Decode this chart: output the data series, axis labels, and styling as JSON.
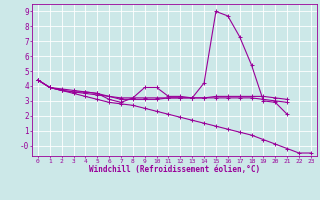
{
  "background_color": "#cce8e8",
  "grid_color": "#ffffff",
  "line_color": "#990099",
  "marker": "+",
  "xlabel": "Windchill (Refroidissement éolien,°C)",
  "xlim": [
    -0.5,
    23.5
  ],
  "ylim": [
    -0.7,
    9.5
  ],
  "xticks": [
    0,
    1,
    2,
    3,
    4,
    5,
    6,
    7,
    8,
    9,
    10,
    11,
    12,
    13,
    14,
    15,
    16,
    17,
    18,
    19,
    20,
    21,
    22,
    23
  ],
  "yticks": [
    0,
    1,
    2,
    3,
    4,
    5,
    6,
    7,
    8,
    9
  ],
  "ytick_labels": [
    "-0",
    "1",
    "2",
    "3",
    "4",
    "5",
    "6",
    "7",
    "8",
    "9"
  ],
  "series": [
    {
      "x": [
        0,
        1,
        2,
        3,
        4,
        5,
        6,
        7,
        8,
        9,
        10,
        11,
        12,
        13,
        14,
        15,
        16,
        17,
        18,
        19,
        20,
        21
      ],
      "y": [
        4.4,
        3.9,
        3.7,
        3.6,
        3.6,
        3.5,
        3.1,
        2.9,
        3.2,
        3.9,
        3.9,
        3.3,
        3.3,
        3.2,
        4.2,
        9.0,
        8.7,
        7.3,
        5.4,
        3.0,
        2.9,
        2.1
      ]
    },
    {
      "x": [
        0,
        1,
        2,
        3,
        4,
        5,
        6,
        7,
        8,
        9,
        10,
        11,
        12,
        13,
        14,
        15,
        16,
        17,
        18,
        19,
        20,
        21
      ],
      "y": [
        4.4,
        3.9,
        3.7,
        3.6,
        3.5,
        3.4,
        3.3,
        3.2,
        3.2,
        3.2,
        3.2,
        3.2,
        3.2,
        3.2,
        3.2,
        3.2,
        3.2,
        3.2,
        3.2,
        3.1,
        3.0,
        2.9
      ]
    },
    {
      "x": [
        0,
        1,
        2,
        3,
        4,
        5,
        6,
        7,
        8,
        9,
        10,
        11,
        12,
        13,
        14,
        15,
        16,
        17,
        18,
        19,
        20,
        21
      ],
      "y": [
        4.4,
        3.9,
        3.8,
        3.7,
        3.6,
        3.5,
        3.3,
        3.1,
        3.1,
        3.1,
        3.1,
        3.2,
        3.2,
        3.2,
        3.2,
        3.3,
        3.3,
        3.3,
        3.3,
        3.3,
        3.2,
        3.1
      ]
    },
    {
      "x": [
        0,
        1,
        2,
        3,
        4,
        5,
        6,
        7,
        8,
        9,
        10,
        11,
        12,
        13,
        14,
        15,
        16,
        17,
        18,
        19,
        20,
        21,
        22,
        23
      ],
      "y": [
        4.4,
        3.9,
        3.7,
        3.5,
        3.3,
        3.1,
        2.9,
        2.8,
        2.7,
        2.5,
        2.3,
        2.1,
        1.9,
        1.7,
        1.5,
        1.3,
        1.1,
        0.9,
        0.7,
        0.4,
        0.1,
        -0.2,
        -0.5,
        -0.5
      ]
    }
  ]
}
